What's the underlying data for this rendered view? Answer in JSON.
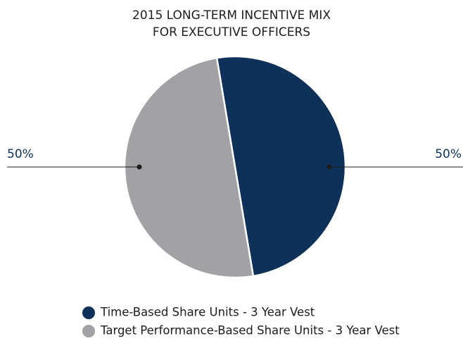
{
  "chart_data": {
    "type": "pie",
    "title": [
      "2015 LONG-TERM INCENTIVE MIX",
      "FOR EXECUTIVE OFFICERS"
    ],
    "categories": [
      "Time-Based Share Units - 3 Year Vest",
      "Target Performance-Based Share Units - 3 Year Vest"
    ],
    "values": [
      50,
      50
    ],
    "value_labels": [
      "50%",
      "50%"
    ],
    "colors": [
      "#0d3158",
      "#a0a2a5"
    ],
    "legend": "bottom"
  }
}
